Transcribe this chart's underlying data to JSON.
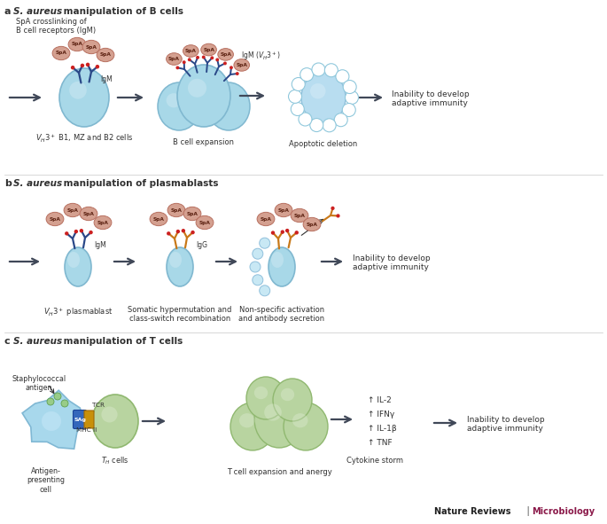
{
  "bg_color": "#ffffff",
  "cell_blue": "#a8d8e8",
  "cell_blue_light": "#c0e4f0",
  "cell_blue_dark": "#80b8d0",
  "cell_green": "#b8d4a0",
  "cell_green_dark": "#90b870",
  "spa_color": "#d4a090",
  "spa_outline": "#b87060",
  "antibody_blue": "#2a4888",
  "antibody_orange": "#c87818",
  "red_dot": "#cc2020",
  "arrow_color": "#404858",
  "text_color": "#303030",
  "micro_color": "#8b1a4a",
  "panel_a_label": "a",
  "panel_b_label": "b",
  "panel_c_label": "c",
  "panel_a_title": " S. aureus manipulation of B cells",
  "panel_b_title": " S. aureus manipulation of plasmablasts",
  "panel_c_title": " S. aureus manipulation of T cells"
}
